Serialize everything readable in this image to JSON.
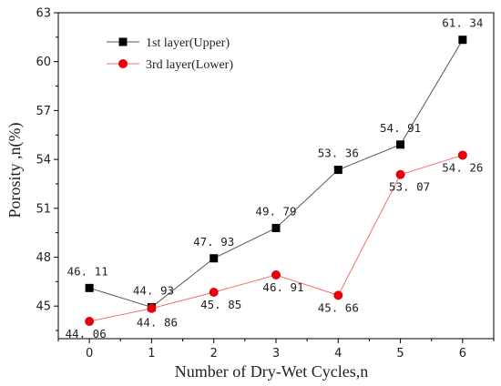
{
  "chart_data": {
    "type": "line",
    "xlabel": "Number of Dry-Wet Cycles,n",
    "ylabel": "Porosity ,n(%)",
    "x": [
      0,
      1,
      2,
      3,
      4,
      5,
      6
    ],
    "xlim": [
      -0.5,
      6.5
    ],
    "ylim": [
      43,
      63
    ],
    "yticks": [
      45,
      48,
      51,
      54,
      57,
      60,
      63
    ],
    "legend_position": "top-left",
    "grid": false,
    "series": [
      {
        "name": "1st layer(Upper)",
        "marker": "square",
        "color": "#000000",
        "line_color": "#555555",
        "values": [
          46.11,
          44.93,
          47.93,
          49.79,
          53.36,
          54.91,
          61.34
        ],
        "labels": [
          "46. 11",
          "44. 93",
          "47. 93",
          "49. 79",
          "53. 36",
          "54. 91",
          "61. 34"
        ]
      },
      {
        "name": "3rd layer(Lower)",
        "marker": "circle",
        "color": "#e8000b",
        "line_color": "#f07070",
        "values": [
          44.06,
          44.86,
          45.85,
          46.91,
          45.66,
          53.07,
          54.26
        ],
        "labels": [
          "44. 06",
          "44. 86",
          "45. 85",
          "46. 91",
          "45. 66",
          "53. 07",
          "54. 26"
        ]
      }
    ]
  }
}
